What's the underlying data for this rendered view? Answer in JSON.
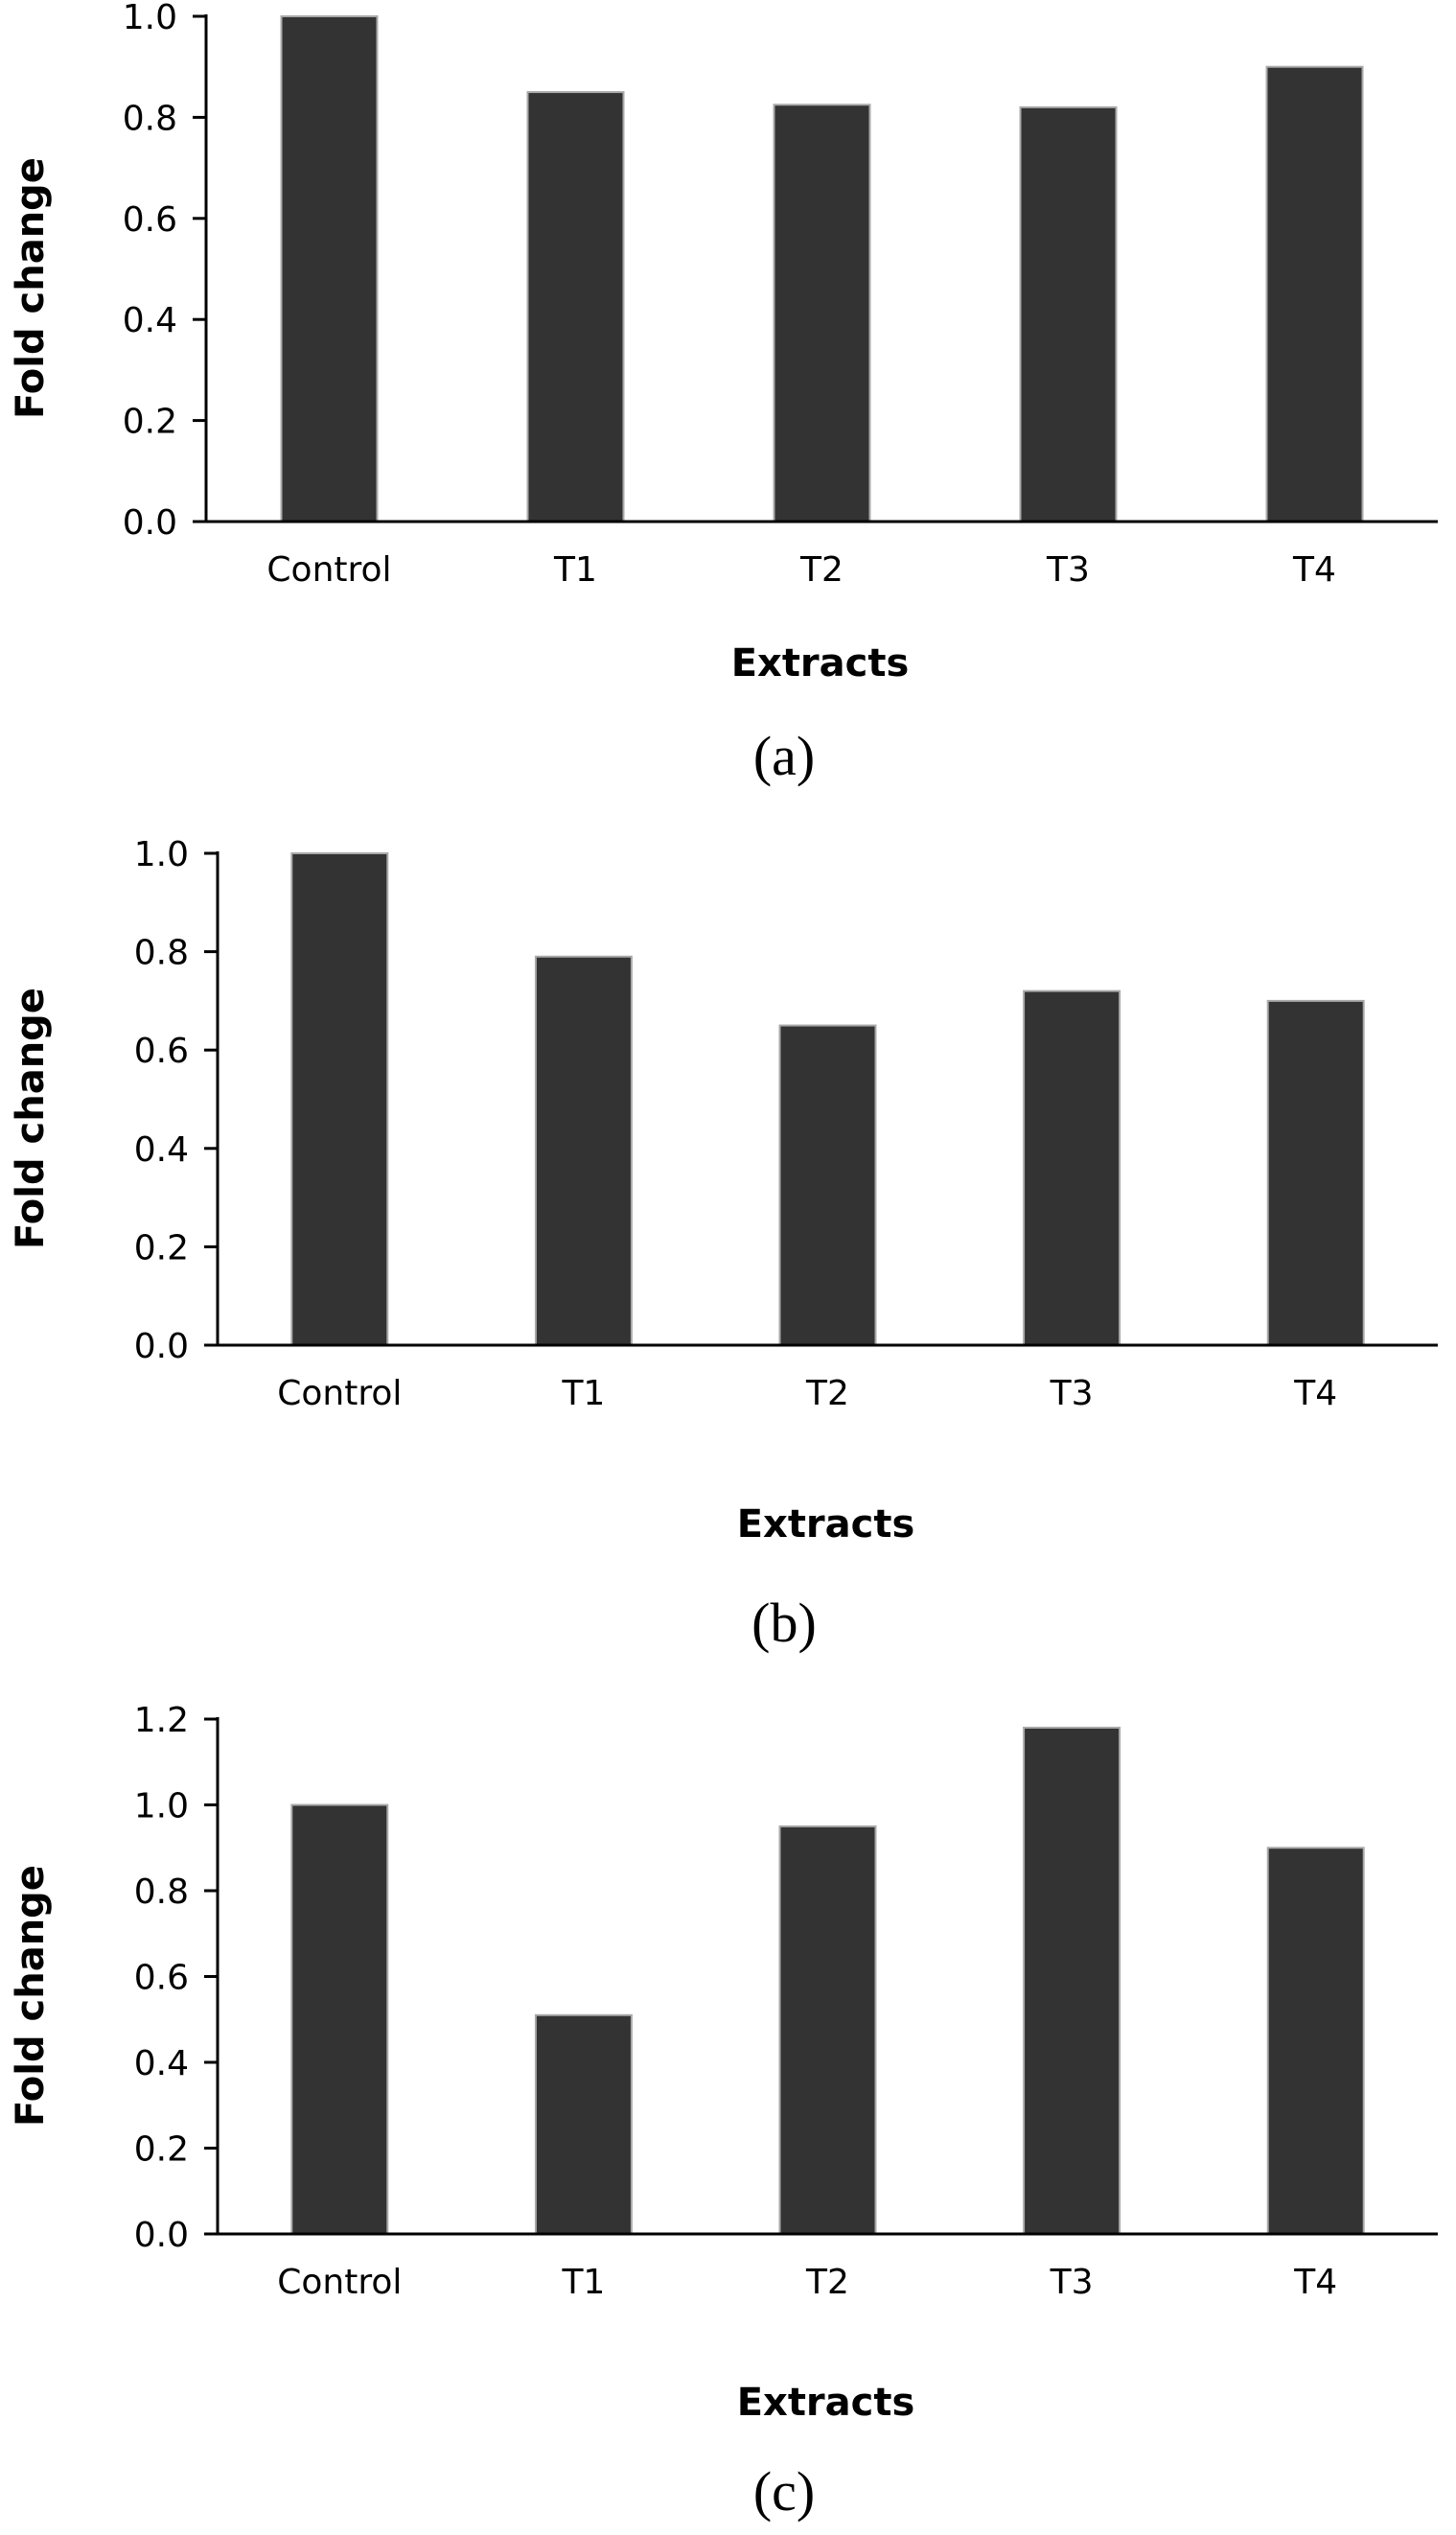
{
  "chart_data": [
    {
      "type": "bar",
      "panel": "(a)",
      "categories": [
        "Control",
        "T1",
        "T2",
        "T3",
        "T4"
      ],
      "values": [
        1.0,
        0.85,
        0.825,
        0.82,
        0.9
      ],
      "xlabel": "Extracts",
      "ylabel": "Fold change",
      "ylim": [
        0,
        1.0
      ],
      "yticks": [
        "0.0",
        "0.2",
        "0.4",
        "0.6",
        "0.8",
        "1.0"
      ],
      "grid": false,
      "color": "#333333"
    },
    {
      "type": "bar",
      "panel": "(b)",
      "categories": [
        "Control",
        "T1",
        "T2",
        "T3",
        "T4"
      ],
      "values": [
        1.0,
        0.79,
        0.65,
        0.72,
        0.7
      ],
      "xlabel": "Extracts",
      "ylabel": "Fold change",
      "ylim": [
        0,
        1.0
      ],
      "yticks": [
        "0.0",
        "0.2",
        "0.4",
        "0.6",
        "0.8",
        "1.0"
      ],
      "grid": false,
      "color": "#333333"
    },
    {
      "type": "bar",
      "panel": "(c)",
      "categories": [
        "Control",
        "T1",
        "T2",
        "T3",
        "T4"
      ],
      "values": [
        1.0,
        0.51,
        0.95,
        1.18,
        0.9
      ],
      "xlabel": "Extracts",
      "ylabel": "Fold change",
      "ylim": [
        0,
        1.2
      ],
      "yticks": [
        "0.0",
        "0.2",
        "0.4",
        "0.6",
        "0.8",
        "1.0",
        "1.2"
      ],
      "grid": false,
      "color": "#333333"
    }
  ]
}
